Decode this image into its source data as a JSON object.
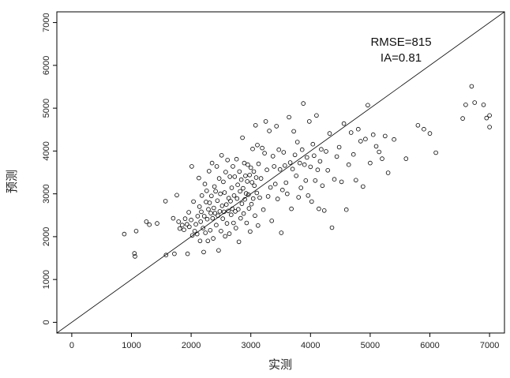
{
  "chart_data": {
    "type": "scatter",
    "title": "",
    "xlabel": "实测",
    "ylabel": "预测",
    "xlim": [
      -250,
      7250
    ],
    "ylim": [
      -250,
      7250
    ],
    "xticks": [
      0,
      1000,
      2000,
      3000,
      4000,
      5000,
      6000,
      7000
    ],
    "yticks": [
      0,
      1000,
      2000,
      3000,
      4000,
      5000,
      6000,
      7000
    ],
    "grid": false,
    "reference_line": "y=x",
    "annotations": [
      "RMSE=815",
      "IA=0.81"
    ],
    "points": [
      [
        880,
        2060
      ],
      [
        1050,
        1610
      ],
      [
        1060,
        1540
      ],
      [
        1080,
        2130
      ],
      [
        1250,
        2350
      ],
      [
        1300,
        2280
      ],
      [
        1430,
        2310
      ],
      [
        1570,
        2830
      ],
      [
        1580,
        1570
      ],
      [
        1700,
        2430
      ],
      [
        1720,
        1600
      ],
      [
        1760,
        2970
      ],
      [
        1790,
        2350
      ],
      [
        1810,
        2190
      ],
      [
        1850,
        2270
      ],
      [
        1880,
        2160
      ],
      [
        1900,
        2420
      ],
      [
        1930,
        2290
      ],
      [
        1940,
        1600
      ],
      [
        1960,
        2570
      ],
      [
        1970,
        2230
      ],
      [
        2000,
        2390
      ],
      [
        2010,
        3640
      ],
      [
        2020,
        2030
      ],
      [
        2040,
        2820
      ],
      [
        2060,
        2130
      ],
      [
        2080,
        2290
      ],
      [
        2100,
        2060
      ],
      [
        2110,
        2480
      ],
      [
        2130,
        3370
      ],
      [
        2140,
        2700
      ],
      [
        2150,
        1900
      ],
      [
        2160,
        2350
      ],
      [
        2170,
        2580
      ],
      [
        2180,
        2960
      ],
      [
        2200,
        2200
      ],
      [
        2210,
        1640
      ],
      [
        2220,
        2480
      ],
      [
        2230,
        3230
      ],
      [
        2240,
        2090
      ],
      [
        2250,
        2810
      ],
      [
        2260,
        3070
      ],
      [
        2270,
        2410
      ],
      [
        2280,
        1900
      ],
      [
        2290,
        2640
      ],
      [
        2300,
        3530
      ],
      [
        2310,
        2790
      ],
      [
        2320,
        2150
      ],
      [
        2330,
        2550
      ],
      [
        2340,
        2950
      ],
      [
        2350,
        3720
      ],
      [
        2360,
        2430
      ],
      [
        2370,
        1960
      ],
      [
        2380,
        2670
      ],
      [
        2390,
        3170
      ],
      [
        2400,
        2550
      ],
      [
        2410,
        3060
      ],
      [
        2420,
        2270
      ],
      [
        2430,
        3640
      ],
      [
        2440,
        2840
      ],
      [
        2450,
        2490
      ],
      [
        2460,
        1680
      ],
      [
        2470,
        3360
      ],
      [
        2480,
        2590
      ],
      [
        2490,
        3000
      ],
      [
        2500,
        2130
      ],
      [
        2510,
        3900
      ],
      [
        2520,
        2720
      ],
      [
        2530,
        2420
      ],
      [
        2540,
        3280
      ],
      [
        2550,
        2580
      ],
      [
        2560,
        3030
      ],
      [
        2570,
        2010
      ],
      [
        2580,
        3510
      ],
      [
        2590,
        2750
      ],
      [
        2600,
        2310
      ],
      [
        2610,
        3790
      ],
      [
        2620,
        2600
      ],
      [
        2630,
        2900
      ],
      [
        2640,
        2070
      ],
      [
        2650,
        3400
      ],
      [
        2660,
        2830
      ],
      [
        2670,
        2510
      ],
      [
        2680,
        3140
      ],
      [
        2690,
        2650
      ],
      [
        2700,
        3640
      ],
      [
        2710,
        2320
      ],
      [
        2720,
        2960
      ],
      [
        2730,
        3400
      ],
      [
        2740,
        2590
      ],
      [
        2750,
        2200
      ],
      [
        2760,
        3810
      ],
      [
        2770,
        2890
      ],
      [
        2780,
        3210
      ],
      [
        2790,
        2640
      ],
      [
        2800,
        1880
      ],
      [
        2810,
        3520
      ],
      [
        2820,
        3060
      ],
      [
        2830,
        2430
      ],
      [
        2840,
        3330
      ],
      [
        2850,
        2770
      ],
      [
        2860,
        4310
      ],
      [
        2870,
        3130
      ],
      [
        2880,
        2540
      ],
      [
        2890,
        3720
      ],
      [
        2900,
        2870
      ],
      [
        2910,
        3420
      ],
      [
        2920,
        3010
      ],
      [
        2930,
        2320
      ],
      [
        2940,
        3290
      ],
      [
        2950,
        3680
      ],
      [
        2960,
        2980
      ],
      [
        2970,
        2660
      ],
      [
        2980,
        3440
      ],
      [
        2990,
        2120
      ],
      [
        3000,
        3610
      ],
      [
        3010,
        2760
      ],
      [
        3020,
        3270
      ],
      [
        3030,
        4050
      ],
      [
        3040,
        2890
      ],
      [
        3050,
        3520
      ],
      [
        3060,
        3190
      ],
      [
        3070,
        2490
      ],
      [
        3080,
        4600
      ],
      [
        3090,
        3380
      ],
      [
        3100,
        3020
      ],
      [
        3110,
        4140
      ],
      [
        3120,
        2260
      ],
      [
        3130,
        3700
      ],
      [
        3150,
        2910
      ],
      [
        3170,
        3360
      ],
      [
        3190,
        4070
      ],
      [
        3210,
        2630
      ],
      [
        3230,
        3950
      ],
      [
        3250,
        4690
      ],
      [
        3270,
        3560
      ],
      [
        3290,
        2940
      ],
      [
        3310,
        4470
      ],
      [
        3330,
        3150
      ],
      [
        3350,
        2370
      ],
      [
        3370,
        3880
      ],
      [
        3390,
        3640
      ],
      [
        3410,
        3230
      ],
      [
        3430,
        4580
      ],
      [
        3450,
        2880
      ],
      [
        3470,
        4030
      ],
      [
        3490,
        3570
      ],
      [
        3510,
        2090
      ],
      [
        3530,
        3090
      ],
      [
        3550,
        3970
      ],
      [
        3570,
        3660
      ],
      [
        3590,
        3260
      ],
      [
        3610,
        3000
      ],
      [
        3640,
        4790
      ],
      [
        3660,
        3730
      ],
      [
        3680,
        2650
      ],
      [
        3700,
        3580
      ],
      [
        3720,
        4460
      ],
      [
        3740,
        3910
      ],
      [
        3760,
        3420
      ],
      [
        3780,
        4210
      ],
      [
        3800,
        2920
      ],
      [
        3820,
        3720
      ],
      [
        3840,
        3140
      ],
      [
        3860,
        4030
      ],
      [
        3880,
        5110
      ],
      [
        3900,
        3680
      ],
      [
        3920,
        3310
      ],
      [
        3940,
        3850
      ],
      [
        3960,
        2960
      ],
      [
        3980,
        4690
      ],
      [
        4000,
        3630
      ],
      [
        4020,
        2820
      ],
      [
        4040,
        4160
      ],
      [
        4060,
        3890
      ],
      [
        4080,
        3310
      ],
      [
        4100,
        4830
      ],
      [
        4120,
        3560
      ],
      [
        4140,
        2650
      ],
      [
        4160,
        3760
      ],
      [
        4180,
        4040
      ],
      [
        4200,
        3190
      ],
      [
        4230,
        2610
      ],
      [
        4260,
        3990
      ],
      [
        4290,
        3550
      ],
      [
        4320,
        4410
      ],
      [
        4360,
        2210
      ],
      [
        4400,
        3340
      ],
      [
        4440,
        3870
      ],
      [
        4480,
        4090
      ],
      [
        4520,
        3280
      ],
      [
        4560,
        4640
      ],
      [
        4600,
        2630
      ],
      [
        4640,
        3680
      ],
      [
        4680,
        4430
      ],
      [
        4720,
        3920
      ],
      [
        4760,
        3320
      ],
      [
        4800,
        4510
      ],
      [
        4840,
        4230
      ],
      [
        4880,
        3170
      ],
      [
        4920,
        4280
      ],
      [
        4960,
        5070
      ],
      [
        5000,
        3720
      ],
      [
        5050,
        4380
      ],
      [
        5100,
        4110
      ],
      [
        5150,
        3980
      ],
      [
        5200,
        3820
      ],
      [
        5250,
        4350
      ],
      [
        5300,
        3490
      ],
      [
        5400,
        4270
      ],
      [
        5600,
        3820
      ],
      [
        5800,
        4600
      ],
      [
        5900,
        4510
      ],
      [
        6000,
        4410
      ],
      [
        6100,
        3960
      ],
      [
        6550,
        4760
      ],
      [
        6600,
        5080
      ],
      [
        6700,
        5510
      ],
      [
        6750,
        5130
      ],
      [
        6900,
        5080
      ],
      [
        6950,
        4770
      ],
      [
        7000,
        4560
      ],
      [
        7000,
        4830
      ]
    ]
  }
}
